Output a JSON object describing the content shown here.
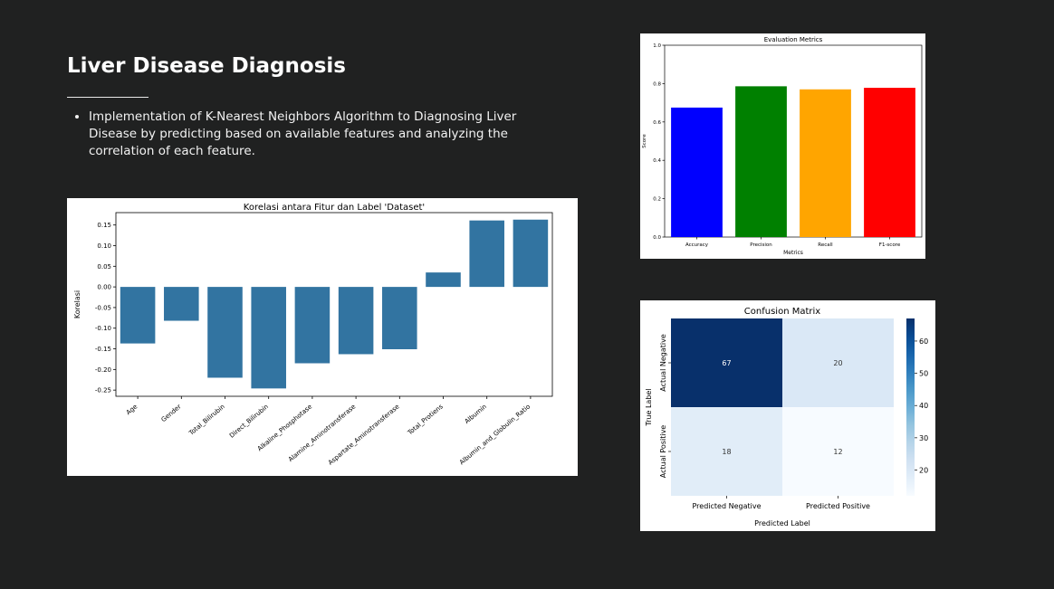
{
  "slide": {
    "title": "Liver Disease Diagnosis",
    "bullets": [
      "Implementation of K-Nearest Neighbors Algorithm to Diagnosing Liver Disease by predicting based on available features and analyzing the correlation of each feature."
    ]
  },
  "chart_data": [
    {
      "type": "bar",
      "title": "Korelasi antara Fitur dan Label 'Dataset'",
      "xlabel": "",
      "ylabel": "Korelasi",
      "categories": [
        "Age",
        "Gender",
        "Total_Bilirubin",
        "Direct_Bilirubin",
        "Alkaline_Phosphotase",
        "Alamine_Aminotransferase",
        "Aspartate_Aminotransferase",
        "Total_Protiens",
        "Albumin",
        "Albumin_and_Globulin_Ratio"
      ],
      "values": [
        -0.137,
        -0.082,
        -0.22,
        -0.246,
        -0.185,
        -0.163,
        -0.151,
        0.035,
        0.161,
        0.163
      ],
      "yticks": [
        "0.15",
        "0.10",
        "0.05",
        "0.00",
        "-0.05",
        "-0.10",
        "-0.15",
        "-0.20",
        "-0.25"
      ],
      "ylim": [
        -0.265,
        0.18
      ],
      "bar_color": "#3274a1",
      "grid": false,
      "legend": "none"
    },
    {
      "type": "bar",
      "title": "Evaluation Metrics",
      "xlabel": "Metrics",
      "ylabel": "Score",
      "categories": [
        "Accuracy",
        "Precision",
        "Recall",
        "F1-score"
      ],
      "values": [
        0.675,
        0.786,
        0.77,
        0.778
      ],
      "colors": [
        "#0000ff",
        "#008000",
        "#ffa500",
        "#ff0000"
      ],
      "yticks": [
        "0.0",
        "0.2",
        "0.4",
        "0.6",
        "0.8",
        "1.0"
      ],
      "ylim": [
        0,
        1.0
      ],
      "grid": false,
      "legend": "none"
    },
    {
      "type": "heatmap",
      "title": "Confusion Matrix",
      "xlabel": "Predicted Label",
      "ylabel": "True Label",
      "x_categories": [
        "Predicted Negative",
        "Predicted Positive"
      ],
      "y_categories": [
        "Actual Negative",
        "Actual Positive"
      ],
      "values": [
        [
          67,
          20
        ],
        [
          18,
          12
        ]
      ],
      "colorbar_ticks": [
        "60",
        "50",
        "40",
        "30",
        "20"
      ],
      "colorbar_range": [
        12,
        67
      ],
      "cmap": "Blues"
    }
  ]
}
